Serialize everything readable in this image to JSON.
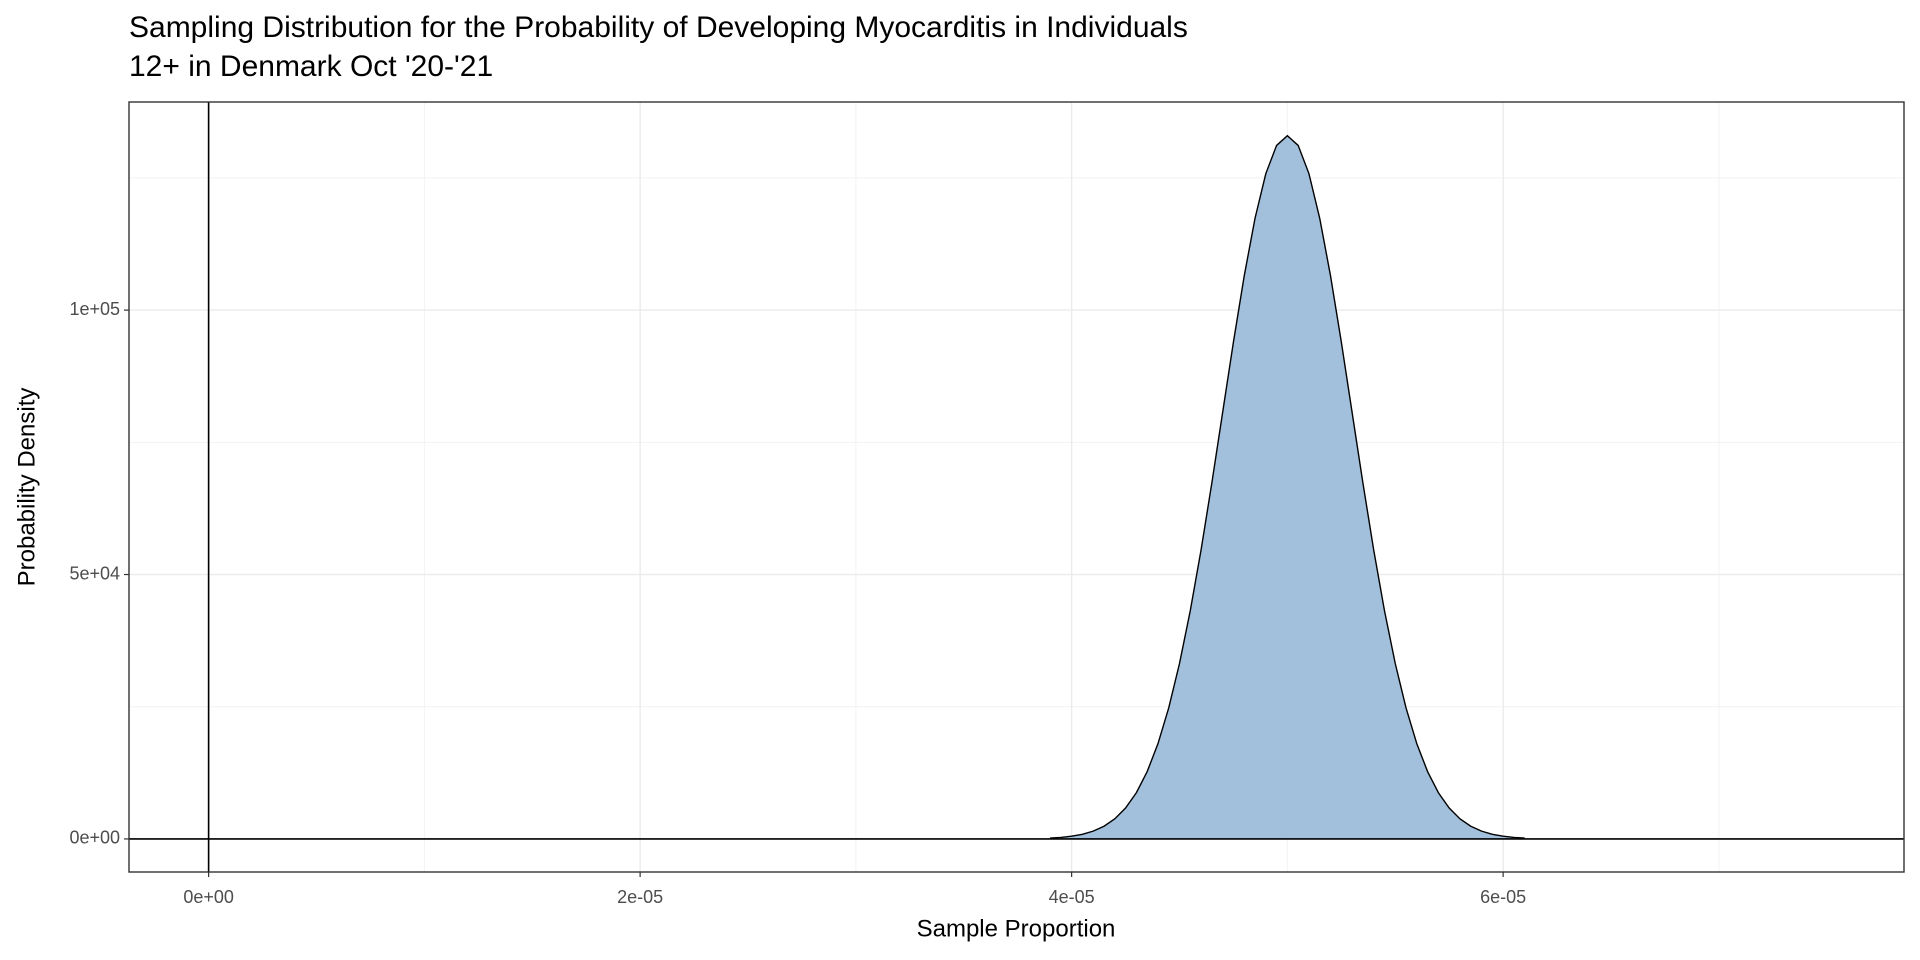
{
  "chart_data": {
    "type": "area",
    "title": "Sampling Distribution for the Probability of Developing Myocarditis in Individuals 12+ in Denmark Oct '20-'21",
    "x_label": "Sample Proportion",
    "y_label": "Probability Density",
    "x": [
      3.9e-05,
      3.95e-05,
      4e-05,
      4.05e-05,
      4.1e-05,
      4.15e-05,
      4.2e-05,
      4.25e-05,
      4.3e-05,
      4.35e-05,
      4.4e-05,
      4.45e-05,
      4.5e-05,
      4.55e-05,
      4.6e-05,
      4.65e-05,
      4.7e-05,
      4.75e-05,
      4.8e-05,
      4.85e-05,
      4.9e-05,
      4.95e-05,
      5e-05,
      5.05e-05,
      5.1e-05,
      5.15e-05,
      5.2e-05,
      5.25e-05,
      5.3e-05,
      5.35e-05,
      5.4e-05,
      5.45e-05,
      5.5e-05,
      5.55e-05,
      5.6e-05,
      5.65e-05,
      5.7e-05,
      5.75e-05,
      5.8e-05,
      5.85e-05,
      5.9e-05,
      5.95e-05,
      6e-05,
      6.05e-05,
      6.1e-05
    ],
    "values": [
      160,
      291,
      514,
      883,
      1477,
      2402,
      3798,
      5843,
      8741,
      12720,
      17997,
      24780,
      33170,
      43180,
      54670,
      67330,
      80657,
      93970,
      106480,
      117350,
      125800,
      131140,
      132981,
      131140,
      125800,
      117350,
      106480,
      93970,
      80657,
      67330,
      54670,
      43180,
      33170,
      24780,
      17997,
      12720,
      8741,
      5843,
      3798,
      2402,
      1477,
      883,
      514,
      291,
      160
    ],
    "color": "#a2c0dc",
    "line_color": "#000000",
    "xlim": [
      -3.69e-06,
      7.858e-05
    ],
    "ylim": [
      -6250,
      139350
    ],
    "xticks": [
      {
        "value": 0,
        "label": "0e+00"
      },
      {
        "value": 2e-05,
        "label": "2e-05"
      },
      {
        "value": 4e-05,
        "label": "4e-05"
      },
      {
        "value": 6e-05,
        "label": "6e-05"
      }
    ],
    "yticks": [
      {
        "value": 0,
        "label": "0e+00"
      },
      {
        "value": 50000,
        "label": "5e+04"
      },
      {
        "value": 100000,
        "label": "1e+05"
      }
    ],
    "minor_xticks": [
      1e-05,
      3e-05,
      5e-05,
      7e-05
    ],
    "minor_yticks": [
      25000,
      75000,
      125000
    ],
    "vline": 0,
    "hline": 0,
    "grid": true
  }
}
